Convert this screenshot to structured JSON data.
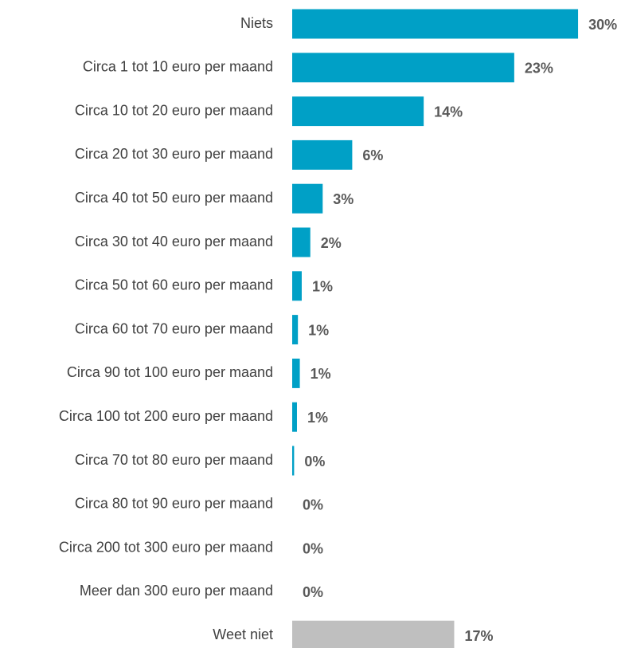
{
  "chart_data": {
    "type": "barh",
    "categories": [
      "Niets",
      "Circa 1 tot 10 euro per maand",
      "Circa 10 tot 20 euro per maand",
      "Circa 20 tot 30 euro per maand",
      "Circa 40 tot 50 euro per maand",
      "Circa 30 tot 40 euro per maand",
      "Circa 50 tot 60 euro per maand",
      "Circa 60 tot 70 euro per maand",
      "Circa 90 tot 100 euro per maand",
      "Circa 100 tot 200 euro per maand",
      "Circa 70 tot 80 euro per maand",
      "Circa 80 tot 90 euro per maand",
      "Circa 200 tot 300 euro per maand",
      "Meer dan 300 euro per maand",
      "Weet niet"
    ],
    "values": [
      30,
      23.3,
      13.8,
      6.3,
      3.2,
      1.9,
      1.0,
      0.6,
      0.8,
      0.5,
      0.2,
      0,
      0,
      0,
      17
    ],
    "value_labels": [
      "30%",
      "23%",
      "14%",
      "6%",
      "3%",
      "2%",
      "1%",
      "1%",
      "1%",
      "1%",
      "0%",
      "0%",
      "0%",
      "0%",
      "17%"
    ],
    "colors": [
      "#00a0c6",
      "#00a0c6",
      "#00a0c6",
      "#00a0c6",
      "#00a0c6",
      "#00a0c6",
      "#00a0c6",
      "#00a0c6",
      "#00a0c6",
      "#00a0c6",
      "#00a0c6",
      "#00a0c6",
      "#00a0c6",
      "#00a0c6",
      "#bfbfbf"
    ],
    "xlim": [
      0,
      32
    ]
  }
}
